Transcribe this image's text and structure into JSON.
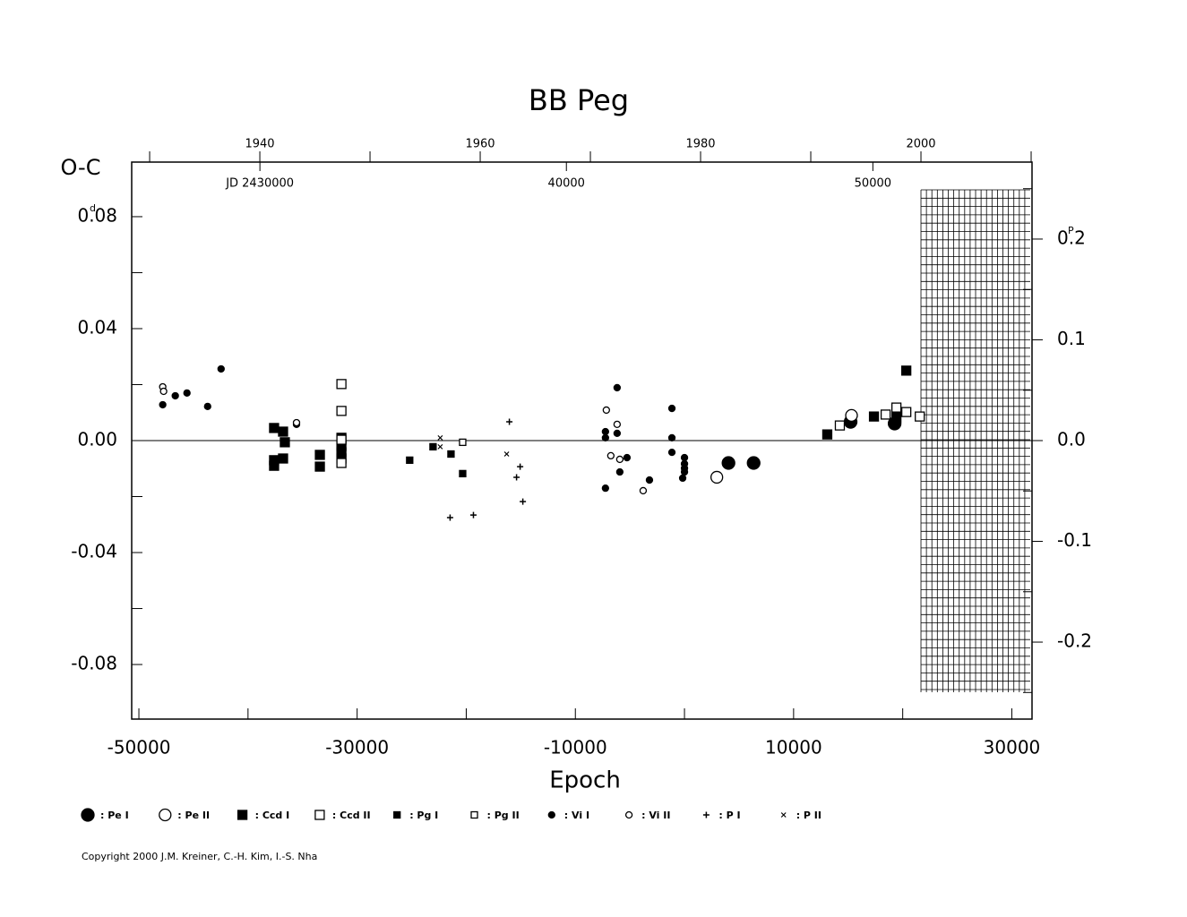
{
  "chart_data": {
    "type": "scatter",
    "title": "BB Peg",
    "ylabel": "O-C",
    "xlabel": "Epoch",
    "y_unit": "d",
    "y2_unit": "P",
    "copyright": "Copyright 2000 J.M. Kreiner, C.-H. Kim, I.-S. Nha",
    "xlim": [
      -50660,
      31850
    ],
    "xticks": [
      -50000,
      -30000,
      -10000,
      10000,
      30000
    ],
    "x_minor_ticks": [
      -40000,
      -20000,
      0,
      20000
    ],
    "ylim": [
      -0.0995,
      0.0995
    ],
    "yticks": [
      {
        "value": 0.08,
        "label": "0.08"
      },
      {
        "value": 0.04,
        "label": "0.04"
      },
      {
        "value": 0,
        "label": "0.00"
      },
      {
        "value": -0.04,
        "label": "-0.04"
      },
      {
        "value": -0.08,
        "label": "-0.08"
      }
    ],
    "y_minor_ticks": [
      0.06,
      0.02,
      -0.02,
      -0.06
    ],
    "y2lim": [
      -0.2764,
      0.2764
    ],
    "y2ticks": [
      0.2,
      0.1,
      {
        "value": 0,
        "label": "0.0"
      },
      -0.1,
      -0.2
    ],
    "y2_minor_ticks": [
      0.25,
      0.15,
      0.05,
      -0.05,
      -0.15,
      -0.25
    ],
    "year_lim": [
      1928.37,
      2010.08
    ],
    "year_ticks": [
      1940,
      1960,
      1980,
      2000
    ],
    "year_minor_ticks": [
      1930,
      1950,
      1970,
      1990,
      2010
    ],
    "jd_lim": [
      25816,
      55193
    ],
    "jd_ticks": [
      {
        "value": 30000,
        "label": "JD 2430000"
      },
      {
        "value": 40000,
        "label": "40000"
      },
      {
        "value": 50000,
        "label": "50000"
      }
    ],
    "series": [
      {
        "name": ": Pe I",
        "marker": "circle",
        "filled": true,
        "size": 14,
        "color": "#000000",
        "x": [
          4033,
          6337,
          15226,
          19258
        ],
        "values": [
          -0.008,
          -0.008,
          0.0067,
          0.0061
        ]
      },
      {
        "name": ": Pe II",
        "marker": "circle",
        "filled": false,
        "size": 13,
        "color": "#000000",
        "x": [
          2963,
          15308
        ],
        "values": [
          -0.0131,
          0.009
        ]
      },
      {
        "name": ": Ccd I",
        "marker": "square",
        "filled": true,
        "size": 10,
        "color": "#000000",
        "x": [
          -37611,
          -37611,
          -37611,
          -36788,
          -36788,
          -36624,
          -33414,
          -33414,
          -31439,
          -31439,
          -31439,
          -31439,
          13086,
          17365,
          20328,
          19423
        ],
        "values": [
          0.0045,
          -0.007,
          -0.009,
          0.0032,
          -0.0064,
          -0.0006,
          -0.0051,
          -0.0093,
          0.001,
          -0.0019,
          -0.0042,
          -0.0064,
          0.0022,
          0.0086,
          0.025,
          0.0083
        ]
      },
      {
        "name": ": Ccd II",
        "marker": "square",
        "filled": false,
        "size": 10,
        "color": "#000000",
        "x": [
          -31439,
          -31439,
          -31439,
          -31439,
          14238,
          18435,
          19423,
          20328,
          21563
        ],
        "values": [
          0.0202,
          0.0106,
          -0.008,
          0.0003,
          0.0054,
          0.0093,
          0.0118,
          0.0102,
          0.0086
        ]
      },
      {
        "name": ": Pg I",
        "marker": "square",
        "filled": true,
        "size": 7,
        "color": "#000000",
        "x": [
          -25184,
          -23044,
          -21398,
          -20328
        ],
        "values": [
          -0.007,
          -0.0022,
          -0.0048,
          -0.0118
        ]
      },
      {
        "name": ": Pg II",
        "marker": "square",
        "filled": false,
        "size": 7,
        "color": "#000000",
        "x": [
          -20328
        ],
        "values": [
          -0.0006
        ]
      },
      {
        "name": ": Vi I",
        "marker": "circle",
        "filled": true,
        "size": 7,
        "color": "#000000",
        "x": [
          -47816,
          -46665,
          -45594,
          -43701,
          -42467,
          -35554,
          -7242,
          -7242,
          -7242,
          -6173,
          -6173,
          -5926,
          -5267,
          -3210,
          -1152,
          -1152,
          -1152,
          -165,
          0,
          0,
          0,
          0
        ],
        "values": [
          0.0128,
          0.016,
          0.017,
          0.0122,
          0.0256,
          0.0058,
          -0.017,
          0.0032,
          0.001,
          0.0189,
          0.0026,
          -0.0112,
          -0.0061,
          -0.0141,
          0.0115,
          0.001,
          -0.0042,
          -0.0134,
          -0.0061,
          -0.0083,
          -0.0099,
          -0.0112
        ]
      },
      {
        "name": ": Vi II",
        "marker": "circle",
        "filled": false,
        "size": 7,
        "color": "#000000",
        "x": [
          -47816,
          -47734,
          -35554,
          -7160,
          -6749,
          -6173,
          -5926,
          -3786
        ],
        "values": [
          0.0192,
          0.0176,
          0.0064,
          0.0109,
          -0.0054,
          0.0058,
          -0.0067,
          -0.0179
        ]
      },
      {
        "name": ": P I",
        "marker": "plus",
        "filled": true,
        "size": 7,
        "color": "#000000",
        "x": [
          -16049,
          -15061,
          -15390,
          -14814,
          -21480,
          -19341
        ],
        "values": [
          0.0067,
          -0.0093,
          -0.0131,
          -0.0218,
          -0.0275,
          -0.0266
        ]
      },
      {
        "name": ": P II",
        "marker": "cross",
        "filled": true,
        "size": 5,
        "color": "#000000",
        "x": [
          -22386,
          -22386,
          -16295
        ],
        "values": [
          0.001,
          -0.0022,
          -0.0048
        ]
      }
    ]
  }
}
